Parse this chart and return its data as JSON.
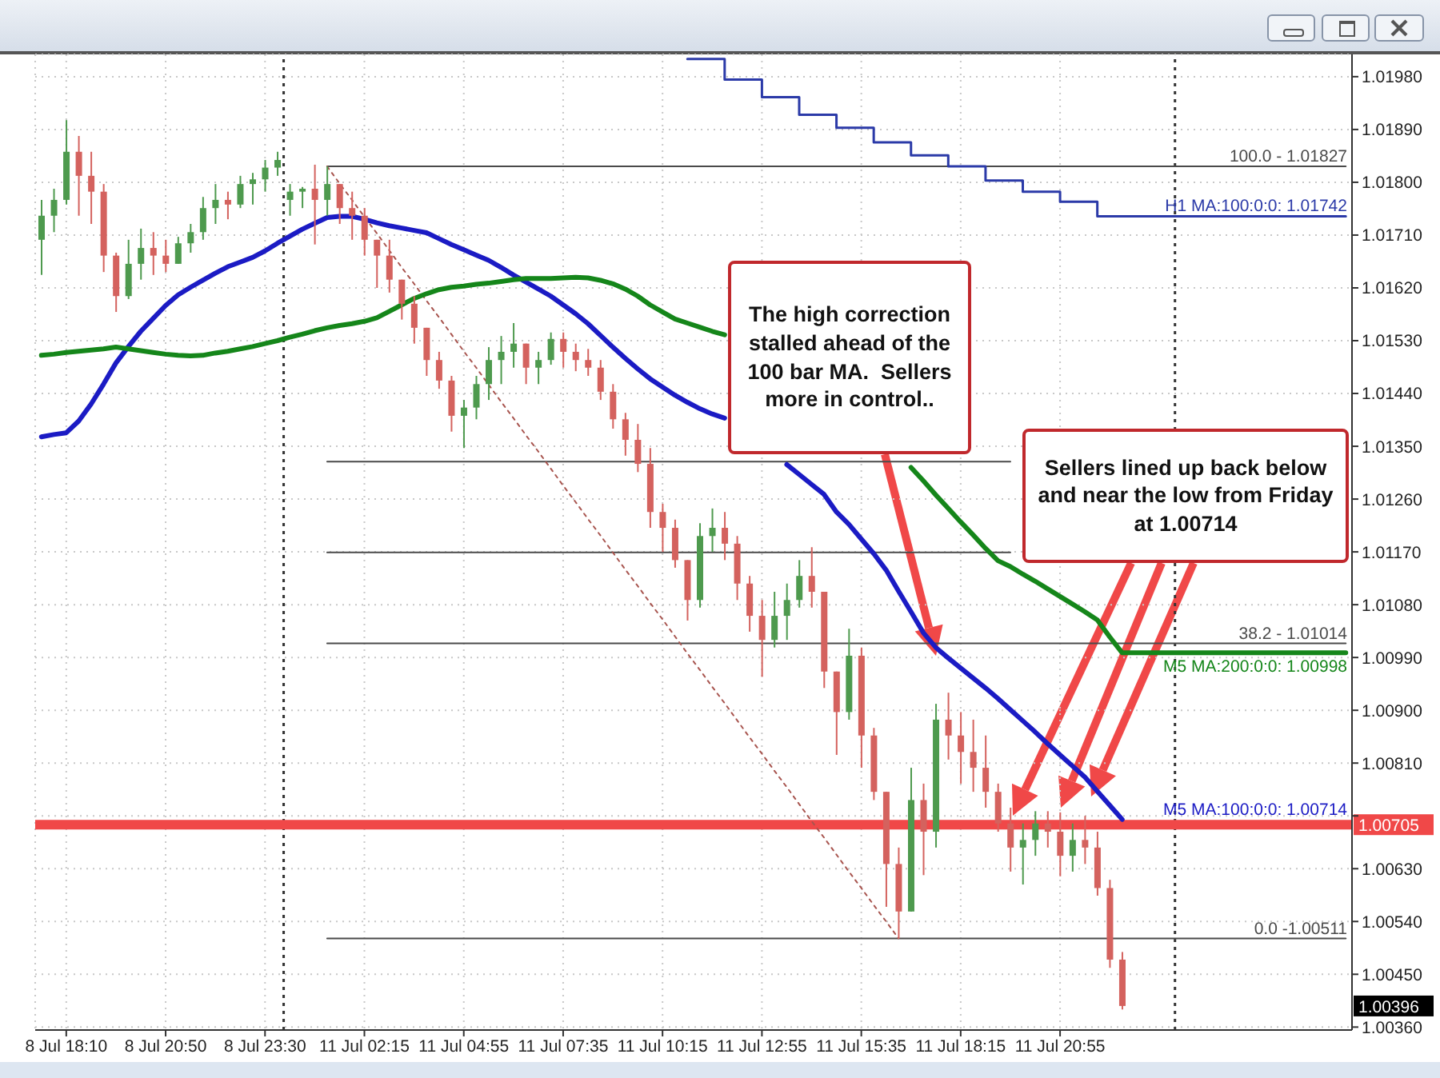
{
  "chart_data": {
    "type": "candlestick",
    "categories": [
      null,
      null,
      "8 Jul 18:10",
      null,
      null,
      null,
      null,
      null,
      null,
      null,
      "8 Jul 20:50",
      null,
      null,
      null,
      null,
      null,
      null,
      null,
      "8 Jul 23:30",
      null,
      null,
      null,
      null,
      null,
      null,
      null,
      "11 Jul 02:15",
      null,
      null,
      null,
      null,
      null,
      null,
      null,
      "11 Jul 04:55",
      null,
      null,
      null,
      null,
      null,
      null,
      null,
      "11 Jul 07:35",
      null,
      null,
      null,
      null,
      null,
      null,
      null,
      "11 Jul 10:15",
      null,
      null,
      null,
      null,
      null,
      null,
      null,
      "11 Jul 12:55",
      null,
      null,
      null,
      null,
      null,
      null,
      null,
      "11 Jul 15:35",
      null,
      null,
      null,
      null,
      null,
      null,
      null,
      "11 Jul 18:15",
      null,
      null,
      null,
      null,
      null,
      null,
      null,
      "11 Jul 20:55",
      null,
      null,
      null,
      null,
      null,
      null,
      null,
      null,
      null,
      null,
      null,
      null,
      null,
      null,
      null,
      null,
      null,
      null,
      null,
      null,
      null,
      null,
      null
    ],
    "ohlc": [
      [
        1.01702,
        1.0177,
        1.01642,
        1.01743
      ],
      [
        1.01743,
        1.01789,
        1.01715,
        1.0177
      ],
      [
        1.0177,
        1.01906,
        1.01762,
        1.01852
      ],
      [
        1.01852,
        1.01879,
        1.01743,
        1.01811
      ],
      [
        1.01811,
        1.01852,
        1.01729,
        1.01784
      ],
      [
        1.01784,
        1.01797,
        1.01647,
        1.01675
      ],
      [
        1.01675,
        1.0168,
        1.01579,
        1.01606
      ],
      [
        1.01606,
        1.01702,
        1.01601,
        1.01661
      ],
      [
        1.01661,
        1.01721,
        1.01634,
        1.01688
      ],
      [
        1.01688,
        1.01715,
        1.01642,
        1.01675
      ],
      [
        1.01675,
        1.01702,
        1.01647,
        1.01661
      ],
      [
        1.01661,
        1.01707,
        1.01661,
        1.01696
      ],
      [
        1.01696,
        1.01729,
        1.0168,
        1.01715
      ],
      [
        1.01715,
        1.01775,
        1.01702,
        1.01756
      ],
      [
        1.01756,
        1.01797,
        1.01729,
        1.0177
      ],
      [
        1.0177,
        1.01784,
        1.01737,
        1.01762
      ],
      [
        1.01762,
        1.01811,
        1.01756,
        1.01797
      ],
      [
        1.01797,
        1.01816,
        1.01762,
        1.01805
      ],
      [
        1.01805,
        1.01838,
        1.01784,
        1.01825
      ],
      [
        1.01825,
        1.01852,
        1.01811,
        1.01838
      ],
      [
        1.0177,
        1.01797,
        1.01743,
        1.01784
      ],
      [
        1.01784,
        1.01792,
        1.01756,
        1.01789
      ],
      [
        1.01789,
        1.0183,
        1.01694,
        1.0177
      ],
      [
        1.0177,
        1.01827,
        1.01743,
        1.01797
      ],
      [
        1.01797,
        1.01797,
        1.01729,
        1.01756
      ],
      [
        1.01756,
        1.01784,
        1.01702,
        1.01743
      ],
      [
        1.01743,
        1.01756,
        1.01675,
        1.01702
      ],
      [
        1.01702,
        1.01702,
        1.0162,
        1.01675
      ],
      [
        1.01675,
        1.01702,
        1.01612,
        1.01634
      ],
      [
        1.01634,
        1.01634,
        1.01566,
        1.01593
      ],
      [
        1.01593,
        1.01606,
        1.01525,
        1.01552
      ],
      [
        1.01552,
        1.01552,
        1.0147,
        1.01497
      ],
      [
        1.01497,
        1.01511,
        1.01448,
        1.01462
      ],
      [
        1.01462,
        1.0147,
        1.01375,
        1.01402
      ],
      [
        1.01402,
        1.01429,
        1.01347,
        1.01416
      ],
      [
        1.01416,
        1.0147,
        1.01396,
        1.01456
      ],
      [
        1.01456,
        1.01519,
        1.01429,
        1.01497
      ],
      [
        1.01497,
        1.01538,
        1.01456,
        1.01511
      ],
      [
        1.01511,
        1.0156,
        1.01484,
        1.01525
      ],
      [
        1.01525,
        1.01525,
        1.01456,
        1.01484
      ],
      [
        1.01484,
        1.01511,
        1.01456,
        1.01497
      ],
      [
        1.01497,
        1.01544,
        1.01489,
        1.01533
      ],
      [
        1.01533,
        1.01544,
        1.01484,
        1.01511
      ],
      [
        1.01511,
        1.01525,
        1.01478,
        1.01497
      ],
      [
        1.01497,
        1.01516,
        1.0147,
        1.01484
      ],
      [
        1.01484,
        1.01497,
        1.01429,
        1.01443
      ],
      [
        1.01443,
        1.01456,
        1.0138,
        1.01396
      ],
      [
        1.01396,
        1.01407,
        1.01334,
        1.01361
      ],
      [
        1.01361,
        1.01388,
        1.01306,
        1.0132
      ],
      [
        1.0132,
        1.01347,
        1.01211,
        1.01238
      ],
      [
        1.01238,
        1.01252,
        1.0117,
        1.01211
      ],
      [
        1.01211,
        1.01225,
        1.01143,
        1.01156
      ],
      [
        1.01156,
        1.01156,
        1.01053,
        1.01088
      ],
      [
        1.01088,
        1.01219,
        1.01075,
        1.01197
      ],
      [
        1.01197,
        1.01244,
        1.0117,
        1.01211
      ],
      [
        1.01211,
        1.01238,
        1.01156,
        1.01184
      ],
      [
        1.01184,
        1.01197,
        1.01088,
        1.01116
      ],
      [
        1.01116,
        1.01129,
        1.01034,
        1.01061
      ],
      [
        1.01061,
        1.01088,
        1.00957,
        1.0102
      ],
      [
        1.0102,
        1.01102,
        1.01007,
        1.01061
      ],
      [
        1.01061,
        1.01116,
        1.0102,
        1.01088
      ],
      [
        1.01088,
        1.01156,
        1.01075,
        1.01129
      ],
      [
        1.01129,
        1.01178,
        1.01075,
        1.01102
      ],
      [
        1.01102,
        1.01102,
        1.00938,
        1.00966
      ],
      [
        1.00966,
        1.00966,
        1.00824,
        1.00897
      ],
      [
        1.00897,
        1.01039,
        1.00884,
        1.00993
      ],
      [
        1.00993,
        1.01007,
        1.00802,
        1.00857
      ],
      [
        1.00857,
        1.0087,
        1.00747,
        1.00761
      ],
      [
        1.00761,
        1.00761,
        1.00565,
        1.00638
      ],
      [
        1.00638,
        1.00666,
        1.00511,
        1.00557
      ],
      [
        1.00557,
        1.00802,
        1.00557,
        1.00747
      ],
      [
        1.00747,
        1.00775,
        1.00619,
        1.00693
      ],
      [
        1.00693,
        1.00911,
        1.00666,
        1.00884
      ],
      [
        1.00884,
        1.0093,
        1.00816,
        1.00857
      ],
      [
        1.00857,
        1.00897,
        1.00775,
        1.00829
      ],
      [
        1.00829,
        1.00884,
        1.00761,
        1.00802
      ],
      [
        1.00802,
        1.00857,
        1.00734,
        1.00761
      ],
      [
        1.00761,
        1.00775,
        1.00693,
        1.00707
      ],
      [
        1.00707,
        1.00734,
        1.00625,
        1.00666
      ],
      [
        1.00666,
        1.00707,
        1.00603,
        1.00679
      ],
      [
        1.00679,
        1.00728,
        1.00652,
        1.00707
      ],
      [
        1.00707,
        1.00728,
        1.00666,
        1.00693
      ],
      [
        1.00693,
        1.00726,
        1.00617,
        1.00652
      ],
      [
        1.00652,
        1.00707,
        1.00625,
        1.00679
      ],
      [
        1.00679,
        1.0072,
        1.00638,
        1.00666
      ],
      [
        1.00666,
        1.00693,
        1.00584,
        1.00597
      ],
      [
        1.00597,
        1.00611,
        1.00461,
        1.00475
      ],
      [
        1.00475,
        1.00488,
        1.0039,
        1.00396
      ],
      null,
      null,
      null,
      null,
      null,
      null,
      null,
      null,
      null,
      null,
      null,
      null,
      null,
      null,
      null,
      null,
      null,
      null
    ],
    "colors": [
      "#4e9a4e",
      "#4e9a4e",
      "#4e9a4e",
      "#d4625e",
      "#d4625e",
      "#d4625e",
      "#d4625e",
      "#4e9a4e",
      "#4e9a4e",
      "#d4625e",
      "#d4625e",
      "#4e9a4e",
      "#4e9a4e",
      "#4e9a4e",
      "#4e9a4e",
      "#d4625e",
      "#4e9a4e",
      "#4e9a4e",
      "#4e9a4e",
      "#4e9a4e",
      "#4e9a4e",
      "#4e9a4e",
      "#d4625e",
      "#4e9a4e",
      "#d4625e",
      "#d4625e",
      "#d4625e",
      "#d4625e",
      "#d4625e",
      "#d4625e",
      "#d4625e",
      "#d4625e",
      "#d4625e",
      "#d4625e",
      "#4e9a4e",
      "#4e9a4e",
      "#4e9a4e",
      "#4e9a4e",
      "#4e9a4e",
      "#d4625e",
      "#4e9a4e",
      "#4e9a4e",
      "#d4625e",
      "#d4625e",
      "#d4625e",
      "#d4625e",
      "#d4625e",
      "#d4625e",
      "#d4625e",
      "#d4625e",
      "#d4625e",
      "#d4625e",
      "#d4625e",
      "#4e9a4e",
      "#4e9a4e",
      "#d4625e",
      "#d4625e",
      "#d4625e",
      "#d4625e",
      "#4e9a4e",
      "#4e9a4e",
      "#4e9a4e",
      "#d4625e",
      "#d4625e",
      "#d4625e",
      "#4e9a4e",
      "#d4625e",
      "#d4625e",
      "#d4625e",
      "#d4625e",
      "#4e9a4e",
      "#d4625e",
      "#4e9a4e",
      "#d4625e",
      "#d4625e",
      "#d4625e",
      "#d4625e",
      "#d4625e",
      "#d4625e",
      "#4e9a4e",
      "#4e9a4e",
      "#d4625e",
      "#d4625e",
      "#4e9a4e",
      "#d4625e",
      "#d4625e",
      "#d4625e",
      "#d4625e",
      null,
      null,
      null,
      null,
      null,
      null,
      null,
      null,
      null,
      null,
      null,
      null,
      null,
      null,
      null,
      null,
      null,
      null
    ],
    "series": [
      {
        "type": "line",
        "name": "100.0 - 1.01827",
        "color": "#4a4a4a",
        "values": [
          null,
          null,
          null,
          null,
          null,
          null,
          null,
          null,
          null,
          null,
          null,
          null,
          null,
          null,
          null,
          null,
          null,
          null,
          null,
          null,
          null,
          null,
          null,
          1.01827,
          1.01827,
          1.01827,
          1.01827,
          1.01827,
          1.01827,
          1.01827,
          1.01827,
          1.01827,
          1.01827,
          1.01827,
          1.01827,
          1.01827,
          1.01827,
          1.01827,
          1.01827,
          1.01827,
          1.01827,
          1.01827,
          1.01827,
          1.01827,
          1.01827,
          1.01827,
          1.01827,
          1.01827,
          1.01827,
          1.01827,
          1.01827,
          1.01827,
          1.01827,
          1.01827,
          1.01827,
          1.01827,
          1.01827,
          1.01827,
          1.01827,
          1.01827,
          1.01827,
          1.01827,
          1.01827,
          1.01827,
          1.01827,
          1.01827,
          1.01827,
          1.01827,
          1.01827,
          1.01827,
          1.01827,
          1.01827,
          1.01827,
          1.01827,
          1.01827,
          1.01827,
          1.01827,
          1.01827,
          1.01827,
          1.01827,
          1.01827,
          1.01827,
          1.01827,
          1.01827,
          1.01827,
          1.01827,
          1.01827,
          1.01827,
          1.01827,
          1.01827,
          1.01827,
          1.01827,
          1.01827,
          1.01827,
          1.01827,
          1.01827,
          1.01827,
          1.01827,
          1.01827,
          1.01827,
          1.01827,
          1.01827,
          1.01827,
          1.01827,
          1.01827,
          1.01827
        ]
      },
      {
        "type": "line",
        "color": "#4a4a4a",
        "values": [
          null,
          null,
          null,
          null,
          null,
          null,
          null,
          null,
          null,
          null,
          null,
          null,
          null,
          null,
          null,
          null,
          null,
          null,
          null,
          null,
          null,
          null,
          null,
          1.01324,
          1.01324,
          1.01324,
          1.01324,
          1.01324,
          1.01324,
          1.01324,
          1.01324,
          1.01324,
          1.01324,
          1.01324,
          1.01324,
          1.01324,
          1.01324,
          1.01324,
          1.01324,
          1.01324,
          1.01324,
          1.01324,
          1.01324,
          1.01324,
          1.01324,
          1.01324,
          1.01324,
          1.01324,
          1.01324,
          1.01324,
          1.01324,
          1.01324,
          1.01324,
          1.01324,
          1.01324,
          1.01324,
          1.01324,
          1.01324,
          1.01324,
          1.01324,
          1.01324,
          1.01324,
          1.01324,
          1.01324,
          1.01324,
          1.01324,
          1.01324,
          1.01324,
          1.01324,
          1.01324,
          1.01324,
          1.01324,
          1.01324,
          1.01324,
          1.01324,
          1.01324,
          1.01324,
          1.01324,
          1.01324,
          null,
          null,
          null,
          null,
          null,
          null,
          null,
          null,
          null,
          null,
          null,
          null,
          null,
          null,
          null,
          null,
          null,
          null,
          null,
          null,
          null,
          null,
          null,
          null,
          null,
          null,
          null
        ]
      },
      {
        "type": "line",
        "color": "#4a4a4a",
        "values": [
          null,
          null,
          null,
          null,
          null,
          null,
          null,
          null,
          null,
          null,
          null,
          null,
          null,
          null,
          null,
          null,
          null,
          null,
          null,
          null,
          null,
          null,
          null,
          1.01169,
          1.01169,
          1.01169,
          1.01169,
          1.01169,
          1.01169,
          1.01169,
          1.01169,
          1.01169,
          1.01169,
          1.01169,
          1.01169,
          1.01169,
          1.01169,
          1.01169,
          1.01169,
          1.01169,
          1.01169,
          1.01169,
          1.01169,
          1.01169,
          1.01169,
          1.01169,
          1.01169,
          1.01169,
          1.01169,
          1.01169,
          1.01169,
          1.01169,
          1.01169,
          1.01169,
          1.01169,
          1.01169,
          1.01169,
          1.01169,
          1.01169,
          1.01169,
          1.01169,
          1.01169,
          1.01169,
          1.01169,
          1.01169,
          1.01169,
          1.01169,
          1.01169,
          1.01169,
          1.01169,
          1.01169,
          1.01169,
          1.01169,
          1.01169,
          1.01169,
          1.01169,
          1.01169,
          1.01169,
          1.01169,
          null,
          null,
          null,
          null,
          null,
          null,
          null,
          null,
          null,
          null,
          null,
          null,
          null,
          null,
          null,
          null,
          null,
          null,
          null,
          null,
          null,
          null,
          null,
          null,
          null,
          null,
          null
        ]
      },
      {
        "type": "line",
        "name": "38.2 - 1.01014",
        "color": "#4a4a4a",
        "values": [
          null,
          null,
          null,
          null,
          null,
          null,
          null,
          null,
          null,
          null,
          null,
          null,
          null,
          null,
          null,
          null,
          null,
          null,
          null,
          null,
          null,
          null,
          null,
          1.01014,
          1.01014,
          1.01014,
          1.01014,
          1.01014,
          1.01014,
          1.01014,
          1.01014,
          1.01014,
          1.01014,
          1.01014,
          1.01014,
          1.01014,
          1.01014,
          1.01014,
          1.01014,
          1.01014,
          1.01014,
          1.01014,
          1.01014,
          1.01014,
          1.01014,
          1.01014,
          1.01014,
          1.01014,
          1.01014,
          1.01014,
          1.01014,
          1.01014,
          1.01014,
          1.01014,
          1.01014,
          1.01014,
          1.01014,
          1.01014,
          1.01014,
          1.01014,
          1.01014,
          1.01014,
          1.01014,
          1.01014,
          1.01014,
          1.01014,
          1.01014,
          1.01014,
          1.01014,
          1.01014,
          1.01014,
          1.01014,
          1.01014,
          1.01014,
          1.01014,
          1.01014,
          1.01014,
          1.01014,
          1.01014,
          1.01014,
          1.01014,
          1.01014,
          1.01014,
          1.01014,
          1.01014,
          1.01014,
          1.01014,
          1.01014,
          1.01014,
          1.01014,
          1.01014,
          1.01014,
          1.01014,
          1.01014,
          1.01014,
          1.01014,
          1.01014,
          1.01014,
          1.01014,
          1.01014,
          1.01014,
          1.01014,
          1.01014,
          1.01014,
          1.01014,
          1.01014
        ]
      },
      {
        "type": "line",
        "name": "0.0 -1.00511",
        "color": "#4a4a4a",
        "values": [
          null,
          null,
          null,
          null,
          null,
          null,
          null,
          null,
          null,
          null,
          null,
          null,
          null,
          null,
          null,
          null,
          null,
          null,
          null,
          null,
          null,
          null,
          null,
          1.00511,
          1.00511,
          1.00511,
          1.00511,
          1.00511,
          1.00511,
          1.00511,
          1.00511,
          1.00511,
          1.00511,
          1.00511,
          1.00511,
          1.00511,
          1.00511,
          1.00511,
          1.00511,
          1.00511,
          1.00511,
          1.00511,
          1.00511,
          1.00511,
          1.00511,
          1.00511,
          1.00511,
          1.00511,
          1.00511,
          1.00511,
          1.00511,
          1.00511,
          1.00511,
          1.00511,
          1.00511,
          1.00511,
          1.00511,
          1.00511,
          1.00511,
          1.00511,
          1.00511,
          1.00511,
          1.00511,
          1.00511,
          1.00511,
          1.00511,
          1.00511,
          1.00511,
          1.00511,
          1.00511,
          1.00511,
          1.00511,
          1.00511,
          1.00511,
          1.00511,
          1.00511,
          1.00511,
          1.00511,
          1.00511,
          1.00511,
          1.00511,
          1.00511,
          1.00511,
          1.00511,
          1.00511,
          1.00511,
          1.00511,
          1.00511,
          1.00511,
          1.00511,
          1.00511,
          1.00511,
          1.00511,
          1.00511,
          1.00511,
          1.00511,
          1.00511,
          1.00511,
          1.00511,
          1.00511,
          1.00511,
          1.00511,
          1.00511,
          1.00511,
          1.00511,
          1.00511
        ]
      },
      {
        "type": "line",
        "color": "#a8554f",
        "line_style": "dotted",
        "values": [
          null,
          null,
          null,
          null,
          null,
          null,
          null,
          null,
          null,
          null,
          null,
          null,
          null,
          null,
          null,
          null,
          null,
          null,
          null,
          null,
          null,
          null,
          null,
          1.01827,
          1.01798,
          1.0177,
          1.01741,
          1.01713,
          1.01684,
          1.01655,
          1.01627,
          1.01598,
          1.0157,
          1.01541,
          1.01512,
          1.01484,
          1.01455,
          1.01426,
          1.01398,
          1.01369,
          1.01341,
          1.01312,
          1.01283,
          1.01255,
          1.01226,
          1.01198,
          1.01169,
          1.0114,
          1.01112,
          1.01083,
          1.01055,
          1.01026,
          1.00997,
          1.00969,
          1.0094,
          1.00912,
          1.00883,
          1.00854,
          1.00826,
          1.00797,
          1.00769,
          1.0074,
          1.00711,
          1.00683,
          1.00654,
          1.00625,
          1.00597,
          1.00568,
          1.0054,
          1.00511,
          null,
          null,
          null,
          null,
          null,
          null,
          null,
          null,
          null,
          null,
          null,
          null,
          null,
          null,
          null,
          null,
          null,
          null,
          null,
          null,
          null,
          null,
          null,
          null,
          null,
          null,
          null,
          null,
          null,
          null,
          null,
          null,
          null,
          null,
          null,
          null
        ]
      },
      {
        "type": "step",
        "name": "H1 MA:100:0:0: 1.01742",
        "color": "#2b3aa8",
        "values": [
          null,
          null,
          null,
          null,
          null,
          null,
          null,
          null,
          null,
          null,
          null,
          null,
          null,
          null,
          null,
          null,
          null,
          null,
          null,
          null,
          null,
          null,
          null,
          null,
          null,
          null,
          null,
          null,
          null,
          null,
          null,
          null,
          null,
          null,
          null,
          null,
          null,
          null,
          null,
          null,
          null,
          null,
          null,
          null,
          null,
          null,
          null,
          null,
          null,
          null,
          null,
          null,
          1.0201,
          1.0201,
          1.0201,
          1.01975,
          1.01975,
          1.01975,
          1.01945,
          1.01945,
          1.01945,
          1.01915,
          1.01915,
          1.01915,
          1.01893,
          1.01893,
          1.01893,
          1.01868,
          1.01868,
          1.01868,
          1.01846,
          1.01846,
          1.01846,
          1.01827,
          1.01827,
          1.01827,
          1.01803,
          1.01803,
          1.01803,
          1.01784,
          1.01784,
          1.01784,
          1.01767,
          1.01767,
          1.01767,
          1.01742,
          1.01742,
          1.01742,
          1.01742,
          1.01742,
          1.01742,
          1.01742,
          1.01742,
          1.01742,
          1.01742,
          1.01742,
          1.01742,
          1.01742,
          1.01742,
          1.01742,
          1.01742,
          1.01742,
          1.01742,
          1.01742,
          1.01742,
          1.01742
        ]
      },
      {
        "type": "line",
        "name": "M5 MA:100:0:0: 1.00714",
        "color": "#1b1bc4",
        "values": [
          1.01366,
          1.0137,
          1.01373,
          1.01393,
          1.01422,
          1.01456,
          1.01492,
          1.0152,
          1.01546,
          1.01568,
          1.0159,
          1.01608,
          1.01621,
          1.01633,
          1.01645,
          1.01656,
          1.01664,
          1.01672,
          1.01683,
          1.01696,
          1.01708,
          1.0172,
          1.0173,
          1.0174,
          1.01742,
          1.01742,
          1.01737,
          1.01731,
          1.01726,
          1.01722,
          1.01718,
          1.01714,
          1.01704,
          1.01694,
          1.01685,
          1.01676,
          1.01667,
          1.01655,
          1.01642,
          1.0163,
          1.01618,
          1.01606,
          1.01591,
          1.01576,
          1.01559,
          1.01539,
          1.01519,
          1.015,
          1.01482,
          1.01465,
          1.01451,
          1.01437,
          1.01425,
          1.01414,
          1.01405,
          1.01398,
          null,
          null,
          null,
          null,
          1.01319,
          1.01302,
          1.01285,
          1.01268,
          1.01238,
          1.01217,
          1.01192,
          1.01167,
          1.01139,
          1.01103,
          1.01068,
          1.01032,
          1.01007,
          1.00989,
          1.00972,
          1.00955,
          1.00938,
          1.0092,
          1.00901,
          1.00882,
          1.00863,
          1.00843,
          1.00824,
          1.00805,
          1.00786,
          1.00762,
          1.00738,
          1.00714,
          null,
          null,
          null,
          null,
          null,
          null,
          null,
          null,
          null,
          null,
          null,
          null,
          null,
          null,
          null,
          null,
          null,
          null
        ]
      },
      {
        "type": "line",
        "name": "M5 MA:200:0:0: 1.00998",
        "color": "#15861a",
        "values": [
          1.01505,
          1.01507,
          1.0151,
          1.01512,
          1.01514,
          1.01516,
          1.01519,
          1.01516,
          1.01513,
          1.0151,
          1.01507,
          1.01505,
          1.01504,
          1.01505,
          1.01509,
          1.01512,
          1.01516,
          1.0152,
          1.01525,
          1.0153,
          1.01536,
          1.01541,
          1.01547,
          1.01552,
          1.01556,
          1.01559,
          1.01563,
          1.01569,
          1.0158,
          1.01591,
          1.01602,
          1.0161,
          1.01617,
          1.01621,
          1.01623,
          1.01626,
          1.01628,
          1.01631,
          1.01634,
          1.01636,
          1.01636,
          1.01636,
          1.01637,
          1.01638,
          1.01637,
          1.01633,
          1.01627,
          1.01618,
          1.01606,
          1.01591,
          1.01579,
          1.01567,
          1.0156,
          1.01553,
          1.01546,
          1.0154,
          null,
          null,
          null,
          null,
          null,
          null,
          null,
          null,
          null,
          null,
          null,
          null,
          null,
          null,
          1.01314,
          1.01291,
          1.01267,
          1.01244,
          1.01221,
          1.01199,
          1.01176,
          1.01155,
          1.01145,
          1.01132,
          1.0112,
          1.01107,
          1.01094,
          1.01081,
          1.01068,
          1.01054,
          1.01025,
          1.00998,
          1.00998,
          1.00998,
          1.00998,
          1.00998,
          1.00998,
          1.00998,
          1.00998,
          1.00998,
          1.00998,
          1.00998,
          1.00998,
          1.00998,
          1.00998,
          1.00998,
          1.00998,
          1.00998,
          1.00998,
          1.00998
        ]
      }
    ],
    "ylim": [
      1.00355,
      1.02018
    ],
    "yticks": [
      {
        "value": 1.0198,
        "label": "1.01980"
      },
      {
        "value": 1.0189,
        "label": "1.01890"
      },
      {
        "value": 1.018,
        "label": "1.01800"
      },
      {
        "value": 1.0171,
        "label": "1.01710"
      },
      {
        "value": 1.0162,
        "label": "1.01620"
      },
      {
        "value": 1.0153,
        "label": "1.01530"
      },
      {
        "value": 1.0144,
        "label": "1.01440"
      },
      {
        "value": 1.0135,
        "label": "1.01350"
      },
      {
        "value": 1.0126,
        "label": "1.01260"
      },
      {
        "value": 1.0117,
        "label": "1.01170"
      },
      {
        "value": 1.0108,
        "label": "1.01080"
      },
      {
        "value": 1.0099,
        "label": "1.00990"
      },
      {
        "value": 1.009,
        "label": "1.00900"
      },
      {
        "value": 1.0081,
        "label": "1.00810"
      },
      {
        "value": 1.0072,
        "label": null
      },
      {
        "value": 1.0063,
        "label": "1.00630"
      },
      {
        "value": 1.0054,
        "label": "1.00540"
      },
      {
        "value": 1.0045,
        "label": "1.00450"
      },
      {
        "value": 1.0036,
        "label": "1.00360"
      }
    ],
    "grid": true,
    "ref_lines": [
      {
        "axis": "y",
        "value": 1.00705,
        "label": "1.00705",
        "color": "#f04848"
      }
    ],
    "annotations": [
      "The high correction stalled ahead of the 100 bar MA.  Sellers more in control..",
      "Sellers lined up back below and near the low from Friday at 1.00714",
      "1.00396"
    ]
  }
}
